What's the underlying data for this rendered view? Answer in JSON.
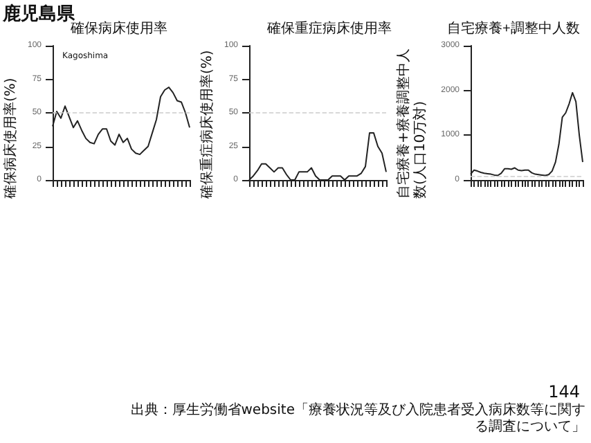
{
  "chart_data": [
    {
      "type": "line",
      "title": "確保病床使用率",
      "ylabel": "確保病床使用率(%)",
      "annotations": [
        "鹿児島県",
        "Kagoshima"
      ],
      "categories": [
        null,
        null,
        null,
        null,
        null,
        null,
        null,
        null,
        null,
        null,
        null,
        null,
        null,
        null,
        null,
        null,
        null,
        null,
        null,
        null,
        null,
        null,
        null,
        null,
        null,
        null,
        null,
        null,
        null,
        null,
        null,
        null,
        null,
        null
      ],
      "values": [
        40,
        51,
        46,
        55,
        47,
        39,
        44,
        37,
        31,
        28,
        27,
        34,
        38,
        38,
        29,
        26,
        34,
        28,
        31,
        23,
        20,
        19,
        22,
        25,
        35,
        45,
        62,
        67,
        69,
        65,
        59,
        58,
        50,
        39
      ],
      "color": "#222222",
      "ylim": [
        0,
        100
      ],
      "yticks": [
        0,
        25,
        50,
        75,
        100
      ],
      "grid": false,
      "marker": "none",
      "ref_lines": [
        {
          "axis": "y",
          "value": 50,
          "color": "#cccccc",
          "line_style": "dashed"
        }
      ]
    },
    {
      "type": "line",
      "title": "確保重症病床使用率",
      "ylabel": "確保重症病床使用率(%)",
      "categories": [
        null,
        null,
        null,
        null,
        null,
        null,
        null,
        null,
        null,
        null,
        null,
        null,
        null,
        null,
        null,
        null,
        null,
        null,
        null,
        null,
        null,
        null,
        null,
        null,
        null,
        null,
        null,
        null,
        null,
        null,
        null,
        null,
        null,
        null
      ],
      "values": [
        0,
        3,
        7,
        12,
        12,
        9,
        6,
        9,
        9,
        4,
        0,
        0,
        6,
        6,
        6,
        9,
        3,
        0,
        0,
        0,
        3,
        3,
        3,
        0,
        3,
        3,
        3,
        5,
        10,
        35,
        35,
        25,
        20,
        6
      ],
      "color": "#222222",
      "ylim": [
        0,
        100
      ],
      "yticks": [
        0,
        25,
        50,
        75,
        100
      ],
      "grid": false,
      "marker": "none",
      "ref_lines": [
        {
          "axis": "y",
          "value": 50,
          "color": "#cccccc",
          "line_style": "dashed"
        }
      ]
    },
    {
      "type": "line",
      "title": "自宅療養+調整中人数",
      "ylabel": "自宅療養+療養調整中人数(人口10万対)",
      "annotations": [
        "144",
        "出典：厚生労働省website「療養状況等及び入院患者受入病床数等に関する調査について」"
      ],
      "categories": [
        null,
        null,
        null,
        null,
        null,
        null,
        null,
        null,
        null,
        null,
        null,
        null,
        null,
        null,
        null,
        null,
        null,
        null,
        null,
        null,
        null,
        null,
        null,
        null,
        null,
        null,
        null,
        null,
        null,
        null,
        null,
        null,
        null,
        null
      ],
      "values": [
        130,
        220,
        200,
        170,
        150,
        140,
        130,
        110,
        100,
        150,
        250,
        250,
        240,
        270,
        220,
        210,
        220,
        220,
        160,
        130,
        120,
        110,
        100,
        120,
        200,
        400,
        800,
        1400,
        1500,
        1700,
        1950,
        1750,
        1000,
        400
      ],
      "color": "#222222",
      "ylim": [
        0,
        3000
      ],
      "yticks": [
        0,
        1000,
        2000,
        3000
      ],
      "grid": false,
      "marker": "none",
      "ref_lines": [
        {
          "axis": "y",
          "value": 70,
          "color": "#cccccc",
          "line_style": "dashed"
        }
      ]
    }
  ]
}
